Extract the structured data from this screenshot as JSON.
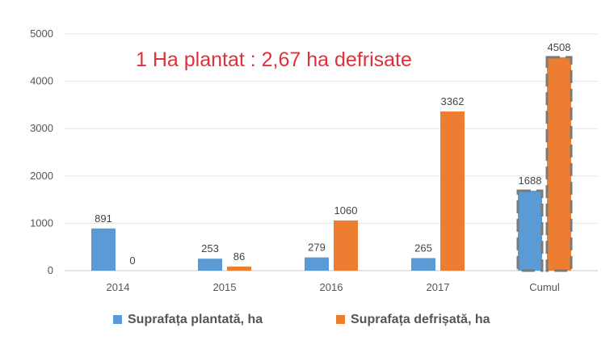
{
  "chart_data": {
    "type": "bar",
    "title": "",
    "annotation": "1 Ha plantat : 2,67 ha defrisate",
    "categories": [
      "2014",
      "2015",
      "2016",
      "2017",
      "Cumul"
    ],
    "series": [
      {
        "name": "Suprafața plantată, ha",
        "color": "#5b9bd5",
        "values": [
          891,
          253,
          279,
          265,
          1688
        ]
      },
      {
        "name": "Suprafața defrișată, ha",
        "color": "#ed7d31",
        "values": [
          0,
          86,
          1060,
          3362,
          4508
        ]
      }
    ],
    "ylim": [
      0,
      5000
    ],
    "yticks": [
      "0",
      "1000",
      "2000",
      "3000",
      "4000",
      "5000"
    ],
    "grid": true,
    "legend_position": "bottom",
    "highlighted_category": "Cumul",
    "gridline_color": "#e6e6e6",
    "axis_color": "#c8c8c8"
  }
}
